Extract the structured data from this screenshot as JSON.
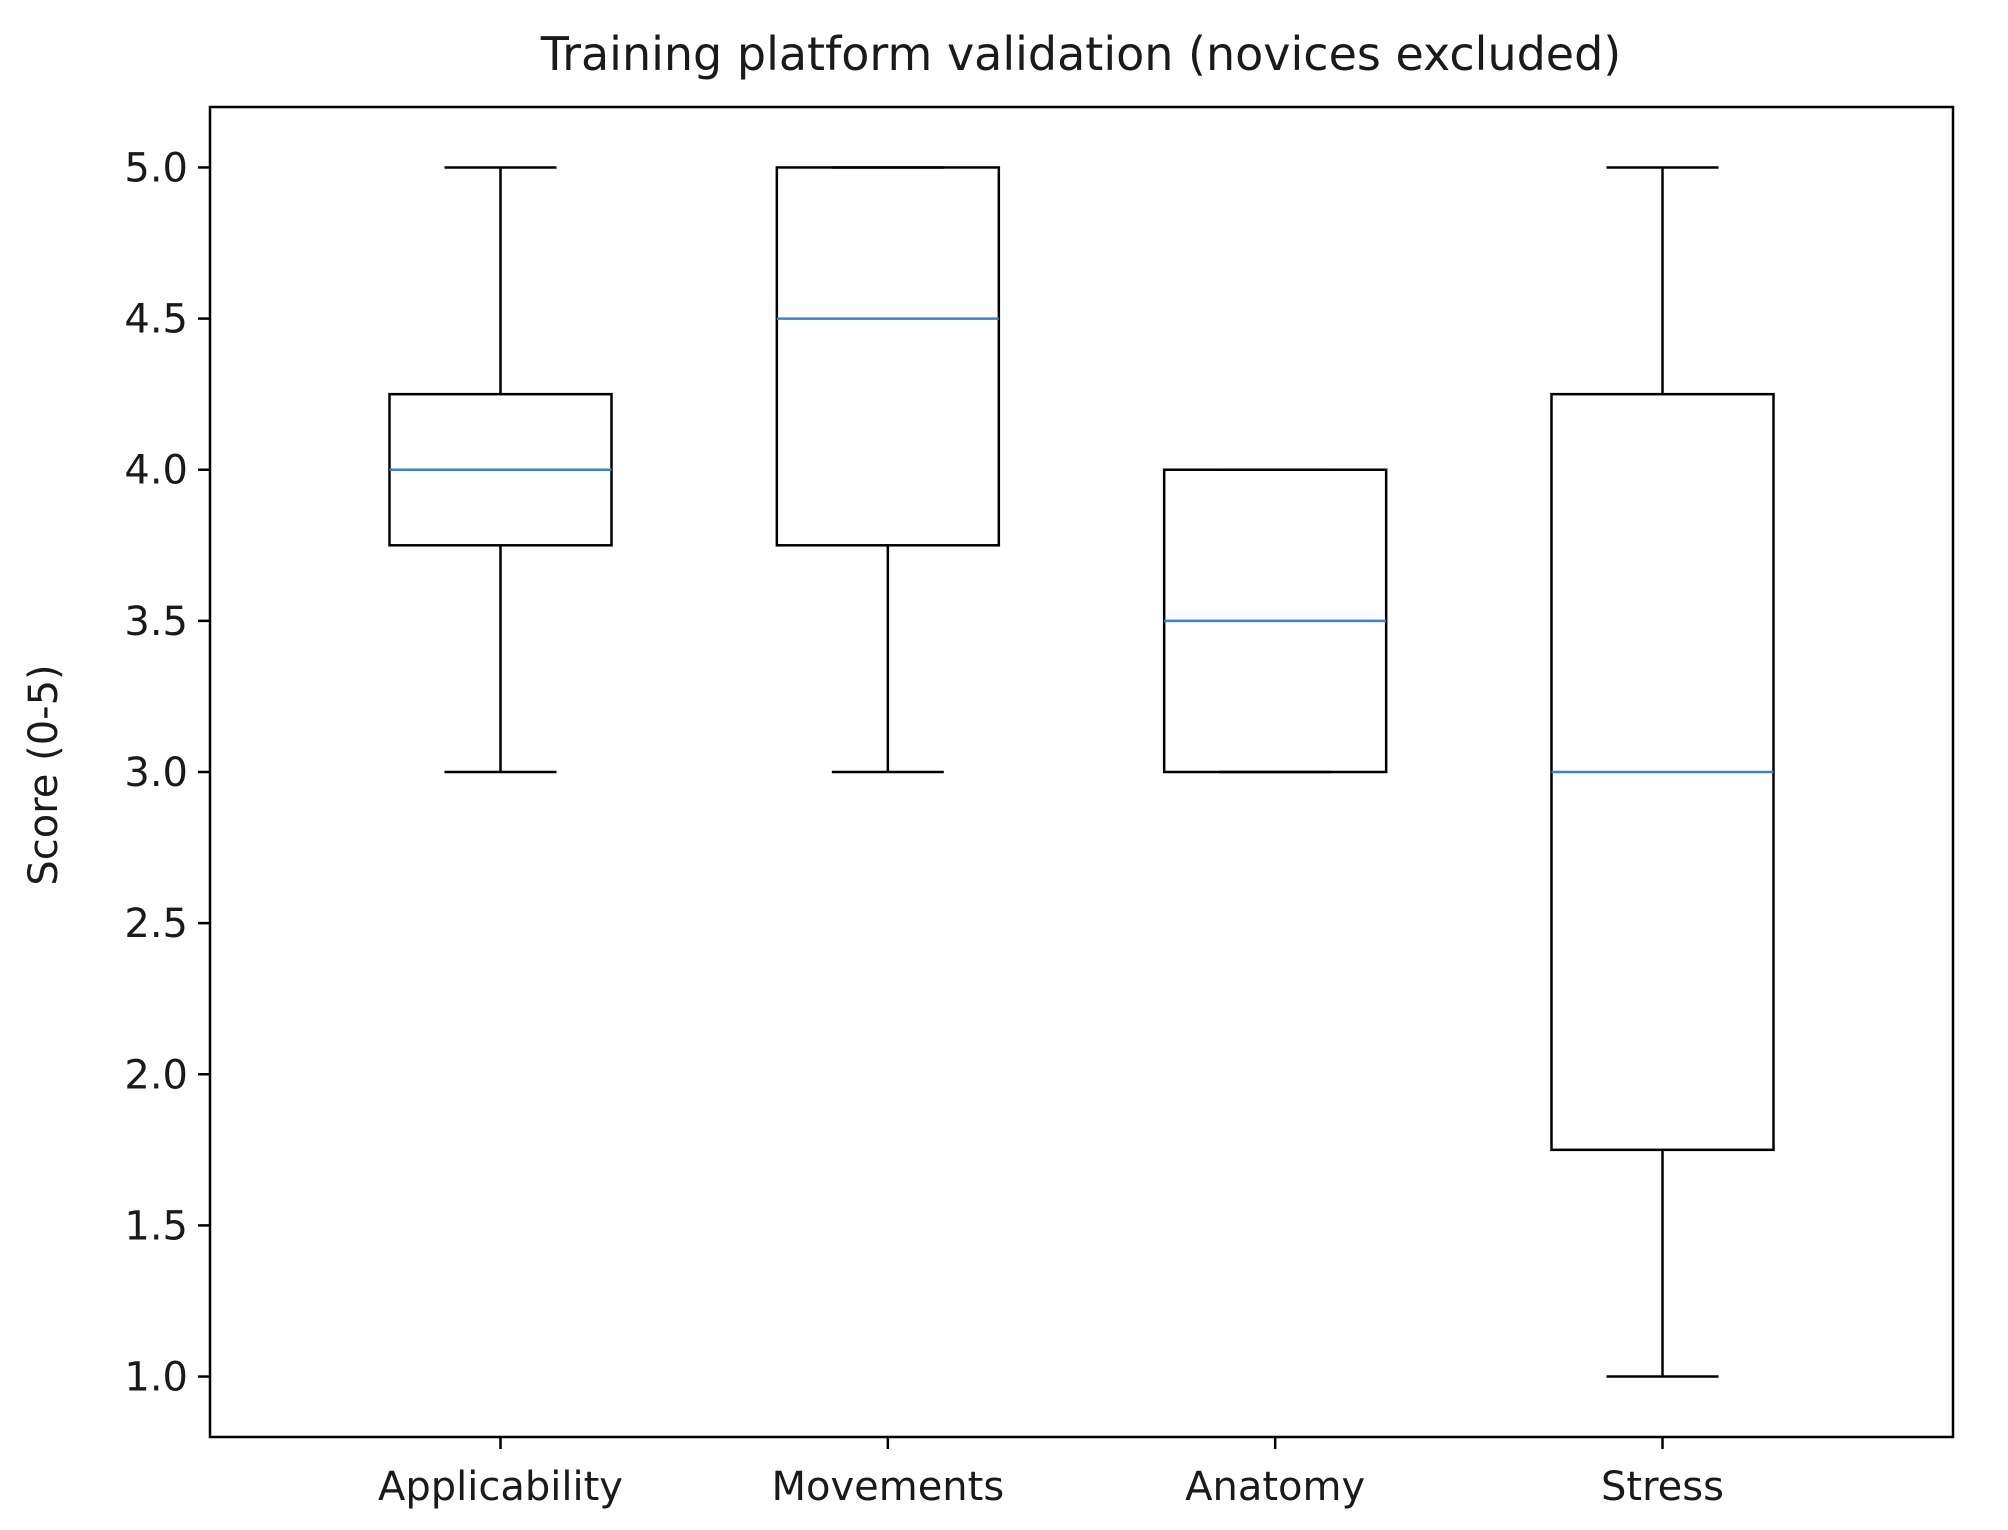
{
  "chart_data": {
    "type": "box",
    "title": "Training platform validation (novices excluded)",
    "xlabel": "",
    "ylabel": "Score (0-5)",
    "ylim": [
      0.8,
      5.2
    ],
    "yticks": [
      "1.0",
      "1.5",
      "2.0",
      "2.5",
      "3.0",
      "3.5",
      "4.0",
      "4.5",
      "5.0"
    ],
    "grid": false,
    "legend": "none",
    "categories": [
      "Applicability",
      "Movements",
      "Anatomy",
      "Stress"
    ],
    "boxes": [
      {
        "category": "Applicability",
        "whisker_low": 3.0,
        "q1": 3.75,
        "median": 4.0,
        "q3": 4.25,
        "whisker_high": 5.0
      },
      {
        "category": "Movements",
        "whisker_low": 3.0,
        "q1": 3.75,
        "median": 4.5,
        "q3": 5.0,
        "whisker_high": 5.0
      },
      {
        "category": "Anatomy",
        "whisker_low": 3.0,
        "q1": 3.0,
        "median": 3.5,
        "q3": 4.0,
        "whisker_high": 4.0
      },
      {
        "category": "Stress",
        "whisker_low": 1.0,
        "q1": 1.75,
        "median": 3.0,
        "q3": 4.25,
        "whisker_high": 5.0
      }
    ],
    "colors": {
      "box": "#000000",
      "median": "#3b7fd0",
      "axes": "#000000",
      "text": "#1a1a1a"
    }
  }
}
